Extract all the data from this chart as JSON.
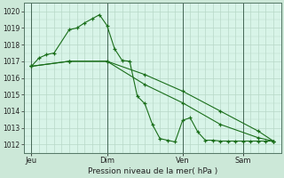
{
  "bg_color": "#cce8d8",
  "plot_bg_color": "#d8f4e8",
  "grid_color_minor": "#b8d8c8",
  "grid_color_major": "#a0c8b8",
  "line_color": "#1a6e1a",
  "xlabel": "Pression niveau de la mer( hPa )",
  "ylim": [
    1011.5,
    1020.5
  ],
  "yticks": [
    1012,
    1013,
    1014,
    1015,
    1016,
    1017,
    1018,
    1019,
    1020
  ],
  "day_labels": [
    "Jeu",
    "Dim",
    "Ven",
    "Sam"
  ],
  "day_positions": [
    0,
    10,
    20,
    28
  ],
  "vline_positions": [
    0,
    10,
    20,
    28
  ],
  "xlim": [
    -1,
    33
  ],
  "line1_x": [
    0,
    1,
    2,
    3,
    5,
    6,
    7,
    8,
    9,
    10,
    11,
    12,
    13,
    14,
    15,
    16,
    17,
    18,
    19,
    20,
    21,
    22,
    23,
    24,
    25,
    26,
    27,
    28,
    29,
    30,
    31,
    32
  ],
  "line1_y": [
    1016.7,
    1017.2,
    1017.4,
    1017.5,
    1018.9,
    1019.0,
    1019.3,
    1019.55,
    1019.8,
    1019.15,
    1017.75,
    1017.05,
    1017.0,
    1014.9,
    1014.45,
    1013.2,
    1012.35,
    1012.25,
    1012.15,
    1013.45,
    1013.6,
    1012.75,
    1012.25,
    1012.25,
    1012.2,
    1012.2,
    1012.2,
    1012.2,
    1012.2,
    1012.2,
    1012.2,
    1012.2
  ],
  "line2_x": [
    0,
    5,
    10,
    15,
    20,
    25,
    30,
    32
  ],
  "line2_y": [
    1016.7,
    1017.0,
    1017.0,
    1016.2,
    1015.2,
    1014.0,
    1012.8,
    1012.2
  ],
  "line3_x": [
    0,
    5,
    10,
    15,
    20,
    25,
    30,
    32
  ],
  "line3_y": [
    1016.7,
    1017.0,
    1017.0,
    1015.6,
    1014.5,
    1013.2,
    1012.4,
    1012.2
  ]
}
